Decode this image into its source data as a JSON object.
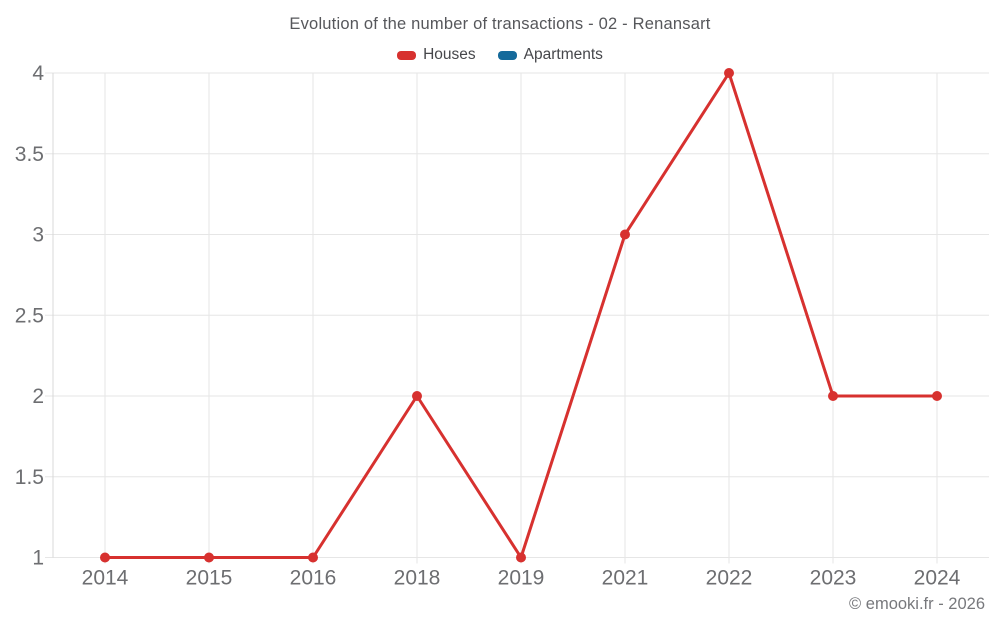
{
  "header": {
    "title": "Evolution of the number of transactions - 02 - Renansart",
    "legend": [
      {
        "label": "Houses",
        "color": "#d7312f"
      },
      {
        "label": "Apartments",
        "color": "#156a9b"
      }
    ]
  },
  "footer": {
    "credit": "© emooki.fr - 2026"
  },
  "chart_data": {
    "type": "line",
    "title": "Evolution of the number of transactions - 02 - Renansart",
    "categories": [
      "2014",
      "2015",
      "2016",
      "2018",
      "2019",
      "2021",
      "2022",
      "2023",
      "2024"
    ],
    "series": [
      {
        "name": "Houses",
        "color": "#d7312f",
        "values": [
          1,
          1,
          1,
          2,
          1,
          3,
          4,
          2,
          2
        ]
      },
      {
        "name": "Apartments",
        "color": "#156a9b",
        "values": []
      }
    ],
    "xlabel": "",
    "ylabel": "",
    "ylim": [
      1,
      4
    ],
    "yticks": [
      1,
      1.5,
      2,
      2.5,
      3,
      3.5,
      4
    ],
    "grid": true,
    "legend_position": "top",
    "grid_color": "#e6e6e6",
    "axis_color": "#d8d8d8",
    "tick_color": "#6d6e71",
    "tick_font_size": 21
  }
}
